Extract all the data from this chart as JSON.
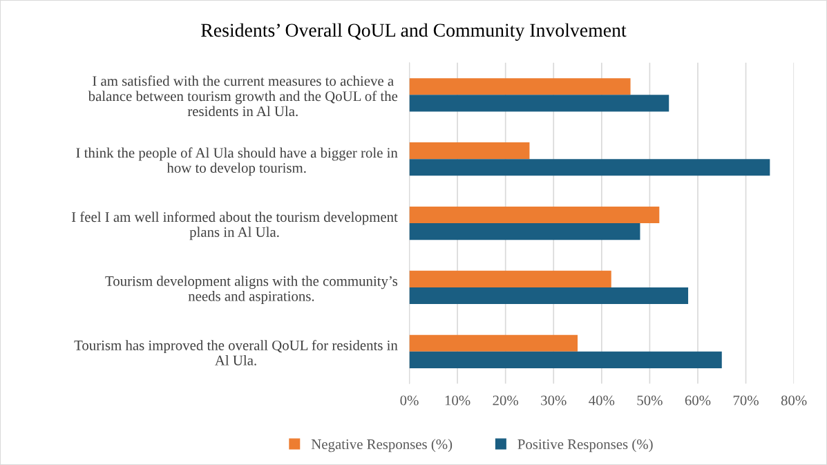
{
  "chart_data": {
    "type": "bar",
    "orientation": "horizontal",
    "title": "Residents’ Overall QoUL and Community Involvement",
    "categories": [
      "I am satisfied with the current measures to achieve a\nbalance between tourism growth and the QoUL of the\nresidents in Al Ula.",
      "I think the people of Al Ula should have a bigger role in\nhow to develop tourism.",
      "I feel I am well informed about the tourism development\nplans in Al Ula.",
      "Tourism development aligns with the community’s\nneeds and aspirations.",
      "Tourism has improved the overall QoUL for residents in\nAl Ula."
    ],
    "series": [
      {
        "name": "Negative Responses (%)",
        "color": "#ed7d31",
        "values": [
          46,
          25,
          52,
          42,
          35
        ]
      },
      {
        "name": "Positive Responses (%)",
        "color": "#1a5e82",
        "values": [
          54,
          75,
          48,
          58,
          65
        ]
      }
    ],
    "xlim": [
      0,
      80
    ],
    "xticks": [
      {
        "value": 0,
        "label": "0%"
      },
      {
        "value": 10,
        "label": "10%"
      },
      {
        "value": 20,
        "label": "20%"
      },
      {
        "value": 30,
        "label": "30%"
      },
      {
        "value": 40,
        "label": "40%"
      },
      {
        "value": 50,
        "label": "50%"
      },
      {
        "value": 60,
        "label": "60%"
      },
      {
        "value": 70,
        "label": "70%"
      },
      {
        "value": 80,
        "label": "80%"
      }
    ],
    "grid": "x",
    "legend": "bottom"
  }
}
